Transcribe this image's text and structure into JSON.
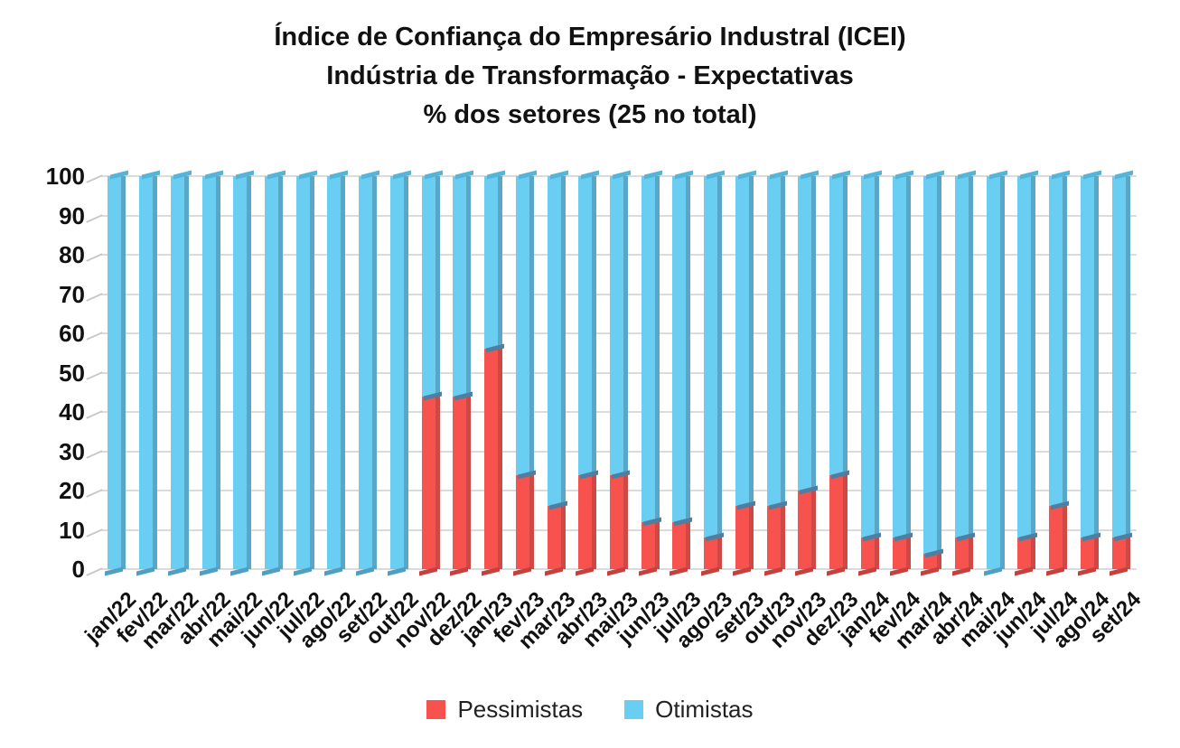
{
  "title": {
    "line1": "Índice de Confiança do Empresário Industral (ICEI)",
    "line2": "Indústria de Transformação - Expectativas",
    "line3": "% dos setores (25 no total)"
  },
  "legend": {
    "pessimistas": "Pessimistas",
    "otimistas": "Otimistas"
  },
  "colors": {
    "pessimistas_face": "#F8524E",
    "pessimistas_side": "#CE4945",
    "pessimistas_cap": "#4F7FA0",
    "pessimistas_foot": "#C6413E",
    "otimistas_face": "#69CEF1",
    "otimistas_side": "#5AA6C6",
    "otimistas_cap": "#55B5D9",
    "otimistas_foot": "#4E9FC1",
    "gridline": "#DBDBDB",
    "tick": "#C9C9C9",
    "text": "#111111"
  },
  "chart_data": {
    "type": "bar",
    "stacked": true,
    "title": "Índice de Confiança do Empresário Industral (ICEI) / Indústria de Transformação - Expectativas / % dos setores (25 no total)",
    "xlabel": "",
    "ylabel": "",
    "unit": "%",
    "ylim": [
      0,
      100
    ],
    "yticks": [
      0,
      10,
      20,
      30,
      40,
      50,
      60,
      70,
      80,
      90,
      100
    ],
    "grid": true,
    "legend_position": "bottom",
    "categories": [
      "jan/22",
      "fev/22",
      "mar/22",
      "abr/22",
      "mai/22",
      "jun/22",
      "jul/22",
      "ago/22",
      "set/22",
      "out/22",
      "nov/22",
      "dez/22",
      "jan/23",
      "fev/23",
      "mar/23",
      "abr/23",
      "mai/23",
      "jun/23",
      "jul/23",
      "ago/23",
      "set/23",
      "out/23",
      "nov/23",
      "dez/23",
      "jan/24",
      "fev/24",
      "mar/24",
      "abr/24",
      "mai/24",
      "jun/24",
      "jul/24",
      "ago/24",
      "set/24"
    ],
    "series": [
      {
        "name": "Pessimistas",
        "color": "#F8524E",
        "values": [
          0,
          0,
          0,
          0,
          0,
          0,
          0,
          0,
          0,
          0,
          44,
          44,
          56,
          24,
          16,
          24,
          24,
          12,
          12,
          8,
          16,
          16,
          20,
          24,
          8,
          8,
          4,
          8,
          0,
          8,
          16,
          8,
          8
        ]
      },
      {
        "name": "Otimistas",
        "color": "#69CEF1",
        "values": [
          100,
          100,
          100,
          100,
          100,
          100,
          100,
          100,
          100,
          100,
          56,
          56,
          44,
          76,
          84,
          76,
          76,
          88,
          88,
          92,
          84,
          84,
          80,
          76,
          92,
          92,
          96,
          92,
          100,
          92,
          84,
          92,
          92
        ]
      }
    ]
  }
}
